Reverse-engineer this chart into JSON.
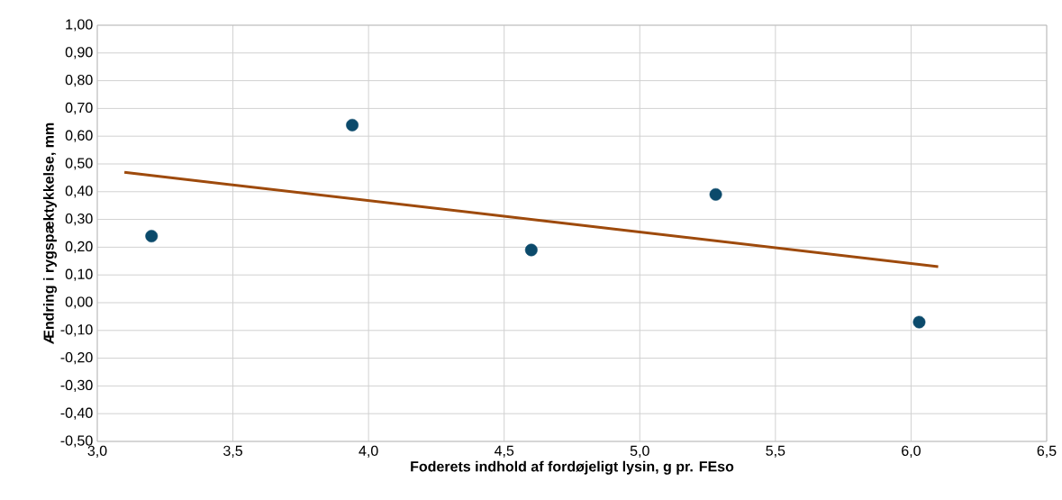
{
  "chart_data": {
    "type": "scatter",
    "xlabel": "Foderets indhold af fordøjeligt lysin, g pr. FEso",
    "ylabel": "Ændring i rygspæktykkelse, mm",
    "series": [
      {
        "color": "#0b4a6b",
        "x": [
          3.2,
          3.94,
          4.6,
          5.28,
          6.03
        ],
        "values": [
          0.24,
          0.64,
          0.19,
          0.39,
          -0.07
        ]
      },
      {
        "type": "line",
        "marker": "none",
        "color": "#9e4a0c",
        "x": [
          3.1,
          6.1
        ],
        "values": [
          0.47,
          0.13
        ]
      }
    ],
    "marker": "circle",
    "grid": true,
    "xlim": [
      3.0,
      6.5
    ],
    "ylim": [
      -0.5,
      1.0
    ],
    "xticks": [
      {
        "value": 3.0,
        "label": "3,0"
      },
      {
        "value": 3.5,
        "label": "3,5"
      },
      {
        "value": 4.0,
        "label": "4,0"
      },
      {
        "value": 4.5,
        "label": "4,5"
      },
      {
        "value": 5.0,
        "label": "5,0"
      },
      {
        "value": 5.5,
        "label": "5,5"
      },
      {
        "value": 6.0,
        "label": "6,0"
      },
      {
        "value": 6.5,
        "label": "6,5"
      }
    ],
    "yticks": [
      {
        "value": -0.5,
        "label": "-0,50"
      },
      {
        "value": -0.4,
        "label": "-0,40"
      },
      {
        "value": -0.3,
        "label": "-0,30"
      },
      {
        "value": -0.2,
        "label": "-0,20"
      },
      {
        "value": -0.1,
        "label": "-0,10"
      },
      {
        "value": 0.0,
        "label": "0,00"
      },
      {
        "value": 0.1,
        "label": "0,10"
      },
      {
        "value": 0.2,
        "label": "0,20"
      },
      {
        "value": 0.3,
        "label": "0,30"
      },
      {
        "value": 0.4,
        "label": "0,40"
      },
      {
        "value": 0.5,
        "label": "0,50"
      },
      {
        "value": 0.6,
        "label": "0,60"
      },
      {
        "value": 0.7,
        "label": "0,70"
      },
      {
        "value": 0.8,
        "label": "0,80"
      },
      {
        "value": 0.9,
        "label": "0,90"
      },
      {
        "value": 1.0,
        "label": "1,00"
      }
    ]
  }
}
